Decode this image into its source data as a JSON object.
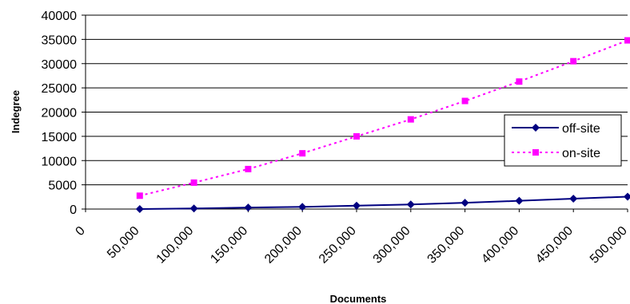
{
  "chart_data": {
    "type": "line",
    "xlabel": "Documents",
    "ylabel": "Indegree",
    "ylim": [
      0,
      40000
    ],
    "y_ticks": [
      "0",
      "5000",
      "10000",
      "15000",
      "20000",
      "25000",
      "30000",
      "35000",
      "40000"
    ],
    "x_tick_labels": [
      "0",
      "50,000",
      "100,000",
      "150,000",
      "200,000",
      "250,000",
      "300,000",
      "350,000",
      "400,000",
      "450,000",
      "500,000"
    ],
    "x": [
      50000,
      100000,
      150000,
      200000,
      250000,
      300000,
      350000,
      400000,
      450000,
      500000
    ],
    "grid": "horizontal",
    "legend_position": "right",
    "series": [
      {
        "name": "off-site",
        "values": [
          0,
          120,
          300,
          450,
          700,
          950,
          1300,
          1700,
          2150,
          2550
        ],
        "color": "#000080",
        "line_style": "solid",
        "marker": "diamond"
      },
      {
        "name": "on-site",
        "values": [
          2750,
          5450,
          8250,
          11500,
          15000,
          18500,
          22300,
          26300,
          30500,
          34800
        ],
        "color": "#ff00ff",
        "line_style": "dotted",
        "marker": "square"
      }
    ]
  }
}
